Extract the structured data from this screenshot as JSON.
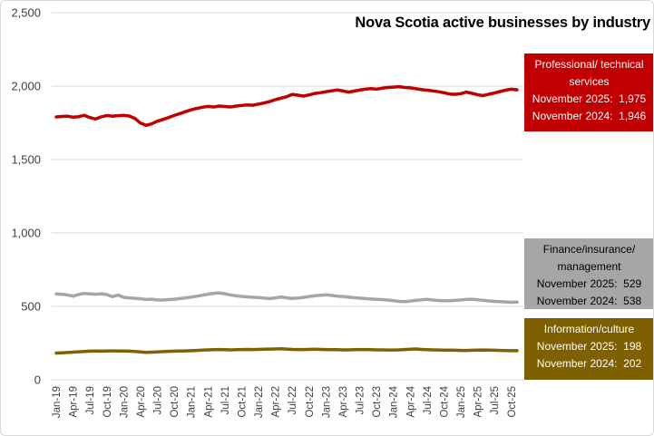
{
  "title": "Nova Scotia active businesses by industry",
  "colors": {
    "professional": "#C00000",
    "finance": "#A6A6A6",
    "information": "#7F6000",
    "gridline": "#D9D9D9",
    "axis_text": "#404040",
    "background": "#FFFFFF"
  },
  "legend_boxes": [
    {
      "series": "Professional/ technical services",
      "lines": [
        "November 2025:  1,975",
        "November 2024:  1,946"
      ],
      "bg": "#C00000",
      "fg": "#FFFFFF"
    },
    {
      "series": "Finance/insurance/ management",
      "lines": [
        "November 2025:  529",
        "November 2024:  538"
      ],
      "bg": "#A6A6A6",
      "fg": "#000000"
    },
    {
      "series": "Information/culture",
      "lines": [
        "November 2025:  198",
        "November 2024:  202"
      ],
      "bg": "#7F6000",
      "fg": "#FFFFFF"
    }
  ],
  "chart_data": {
    "type": "line",
    "title": "Nova Scotia active businesses by industry",
    "xlabel": "",
    "ylabel": "",
    "ylim": [
      0,
      2500
    ],
    "y_tick_interval": 500,
    "y_ticks": [
      0,
      500,
      1000,
      1500,
      2000,
      2500
    ],
    "y_tick_labels": [
      "0",
      "500",
      "1,000",
      "1,500",
      "2,000",
      "2,500"
    ],
    "grid": "horizontal",
    "legend_position": "right-boxes",
    "x_monthly_range": {
      "start": "Jan-2019",
      "end": "Nov-2025",
      "points": 83
    },
    "x_tick_every_months": 3,
    "x_tick_labels": [
      "Jan-19",
      "Apr-19",
      "Jul-19",
      "Oct-19",
      "Jan-20",
      "Apr-20",
      "Jul-20",
      "Oct-20",
      "Jan-21",
      "Apr-21",
      "Jul-21",
      "Oct-21",
      "Jan-22",
      "Apr-22",
      "Jul-22",
      "Oct-22",
      "Jan-23",
      "Apr-23",
      "Jul-23",
      "Oct-23",
      "Jan-24",
      "Apr-24",
      "Jul-24",
      "Oct-24",
      "Jan-25",
      "Apr-25",
      "Jul-25",
      "Oct-25"
    ],
    "series": [
      {
        "name": "Professional/ technical services",
        "color": "#C00000",
        "november_2025": 1975,
        "november_2024": 1946,
        "values": [
          1790,
          1793,
          1795,
          1788,
          1792,
          1801,
          1786,
          1776,
          1791,
          1800,
          1795,
          1799,
          1801,
          1796,
          1780,
          1748,
          1733,
          1743,
          1761,
          1773,
          1786,
          1800,
          1813,
          1826,
          1838,
          1848,
          1856,
          1862,
          1858,
          1864,
          1861,
          1858,
          1864,
          1868,
          1872,
          1870,
          1878,
          1885,
          1895,
          1908,
          1918,
          1928,
          1944,
          1938,
          1932,
          1940,
          1950,
          1955,
          1962,
          1968,
          1974,
          1967,
          1959,
          1966,
          1973,
          1979,
          1983,
          1979,
          1986,
          1991,
          1993,
          1996,
          1991,
          1988,
          1983,
          1976,
          1972,
          1967,
          1962,
          1955,
          1946,
          1944,
          1949,
          1959,
          1951,
          1941,
          1936,
          1945,
          1953,
          1963,
          1973,
          1979,
          1975
        ]
      },
      {
        "name": "Finance/insurance/ management",
        "color": "#A6A6A6",
        "november_2025": 529,
        "november_2024": 538,
        "values": [
          585,
          583,
          578,
          570,
          581,
          588,
          585,
          583,
          586,
          580,
          566,
          578,
          562,
          558,
          555,
          552,
          547,
          549,
          544,
          543,
          546,
          549,
          553,
          558,
          563,
          569,
          576,
          583,
          589,
          592,
          586,
          578,
          572,
          568,
          565,
          562,
          560,
          556,
          553,
          558,
          564,
          558,
          554,
          557,
          561,
          567,
          572,
          576,
          579,
          575,
          570,
          567,
          563,
          559,
          556,
          553,
          550,
          548,
          546,
          543,
          539,
          534,
          533,
          536,
          541,
          545,
          548,
          543,
          540,
          539,
          538,
          541,
          544,
          547,
          549,
          545,
          541,
          537,
          534,
          532,
          530,
          528,
          529
        ]
      },
      {
        "name": "Information/culture",
        "color": "#7F6000",
        "november_2025": 198,
        "november_2024": 202,
        "values": [
          182,
          184,
          186,
          188,
          191,
          193,
          195,
          196,
          195,
          196,
          197,
          196,
          196,
          195,
          193,
          190,
          187,
          188,
          190,
          192,
          194,
          195,
          196,
          197,
          198,
          200,
          202,
          204,
          205,
          206,
          205,
          204,
          205,
          206,
          207,
          206,
          207,
          208,
          209,
          210,
          211,
          209,
          207,
          206,
          206,
          207,
          208,
          207,
          206,
          205,
          205,
          204,
          204,
          205,
          206,
          206,
          205,
          204,
          204,
          203,
          203,
          204,
          206,
          208,
          210,
          207,
          205,
          204,
          203,
          202,
          202,
          201,
          200,
          200,
          201,
          202,
          203,
          202,
          201,
          200,
          199,
          198,
          198
        ]
      }
    ]
  }
}
